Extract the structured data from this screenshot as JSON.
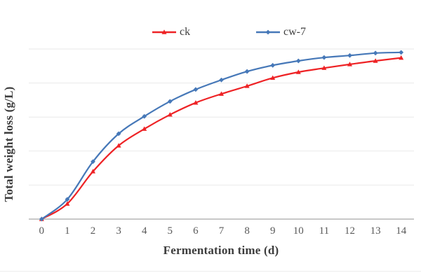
{
  "chart": {
    "x_axis_title": "Fermentation time (d)",
    "y_axis_title": "Total weight loss (g/L)",
    "colors": {
      "gridline": "#e9e9e9",
      "axis_line": "#a8a8a8",
      "tick_label": "#595959",
      "title_text": "#3d3d3d"
    }
  },
  "chart_data": {
    "type": "line",
    "title": "",
    "xlabel": "Fermentation time (d)",
    "ylabel": "Total weight loss (g/L)",
    "x": [
      0,
      1,
      2,
      3,
      4,
      5,
      6,
      7,
      8,
      9,
      10,
      11,
      12,
      13,
      14
    ],
    "series": [
      {
        "name": "ck",
        "color": "#ee2225",
        "marker": "triangle",
        "values": [
          0,
          0.45,
          1.4,
          2.16,
          2.65,
          3.07,
          3.42,
          3.68,
          3.91,
          4.15,
          4.32,
          4.44,
          4.55,
          4.65,
          4.74
        ]
      },
      {
        "name": "cw-7",
        "color": "#4678b8",
        "marker": "diamond",
        "values": [
          0,
          0.58,
          1.69,
          2.51,
          3.02,
          3.46,
          3.81,
          4.09,
          4.34,
          4.52,
          4.65,
          4.75,
          4.81,
          4.88,
          4.9
        ]
      }
    ],
    "ylim": [
      0,
      5
    ],
    "y_tick_labels_visible": false,
    "y_values_note": "y-axis shows no numeric tick labels; series values estimated in gridline units (1 = one gridline interval above the x-axis)",
    "grid": true,
    "gridline_count": 5,
    "legend_position": "top",
    "line_style": "smooth"
  }
}
